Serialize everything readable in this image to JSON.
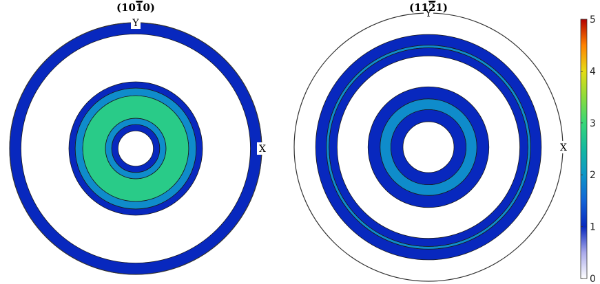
{
  "chart_data": {
    "type": "pole-figure",
    "colorbar": {
      "min": 0,
      "max": 5,
      "ticks": [
        "0",
        "1",
        "2",
        "3",
        "4",
        "5"
      ],
      "colormap": "parula-like"
    },
    "plots": [
      {
        "title": "(10̅1̅0)",
        "title_main": "(10",
        "title_bar": "1",
        "title_tail": "0)",
        "axis_labels": {
          "x": "X",
          "y": "Y"
        },
        "rings": [
          {
            "r_inner": 0.91,
            "r_outer": 1.0,
            "value": 1.0
          },
          {
            "r_inner": 0.48,
            "r_outer": 0.53,
            "value": 1.0
          },
          {
            "r_inner": 0.42,
            "r_outer": 0.48,
            "value": 1.9
          },
          {
            "r_inner": 0.24,
            "r_outer": 0.42,
            "value": 2.8
          },
          {
            "r_inner": 0.19,
            "r_outer": 0.24,
            "value": 1.9
          },
          {
            "r_inner": 0.14,
            "r_outer": 0.19,
            "value": 1.0
          }
        ]
      },
      {
        "title": "(11̅2̅1)",
        "title_main": "(11",
        "title_bar": "2",
        "title_tail": "1)",
        "axis_labels": {
          "x": "X",
          "y": "Y"
        },
        "rings": [
          {
            "r_inner": 0.76,
            "r_outer": 0.84,
            "value": 1.0
          },
          {
            "r_inner": 0.74,
            "r_outer": 0.76,
            "value": 1.9
          },
          {
            "r_inner": 0.68,
            "r_outer": 0.74,
            "value": 1.0
          },
          {
            "r_inner": 0.36,
            "r_outer": 0.45,
            "value": 1.0
          },
          {
            "r_inner": 0.28,
            "r_outer": 0.36,
            "value": 1.9
          },
          {
            "r_inner": 0.19,
            "r_outer": 0.28,
            "value": 1.0
          }
        ]
      }
    ]
  }
}
